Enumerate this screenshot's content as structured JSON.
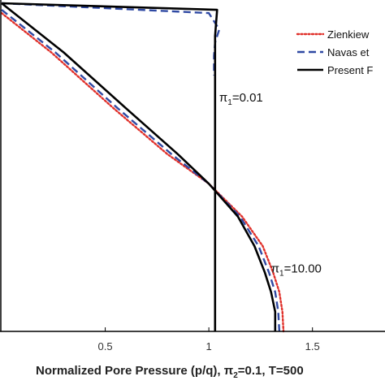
{
  "chart_data": {
    "type": "line",
    "xlabel": {
      "main": "Normalized Pore Pressure (p/q), ",
      "pi2_sym": "π",
      "pi2_sub": "2",
      "pi2_rest": "=0.1, T=500"
    },
    "xlim": [
      0.0,
      1.85
    ],
    "ylim": [
      0.0,
      1.0
    ],
    "x_ticks": [
      {
        "value": 0.5,
        "label": "0.5"
      },
      {
        "value": 1.0,
        "label": "1"
      },
      {
        "value": 1.5,
        "label": "1.5"
      }
    ],
    "legend": {
      "position": "top-right",
      "entries": [
        {
          "label": "Zienkiew",
          "color": "#e0302a",
          "dash": "dotted"
        },
        {
          "label": "Navas et",
          "color": "#2f49a3",
          "dash": "dashed"
        },
        {
          "label": "Present F",
          "color": "#000000",
          "dash": "solid"
        }
      ]
    },
    "annotations": [
      {
        "sym": "π",
        "sub": "1",
        "rest": "=0.01",
        "x": 1.05,
        "y": 0.7
      },
      {
        "sym": "π",
        "sub": "1",
        "rest": "=10.00",
        "x": 1.3,
        "y": 0.18
      }
    ],
    "series": [
      {
        "group": "pi1_0.01",
        "label": "Present F",
        "color": "#000000",
        "dash": "solid",
        "x": [
          0.0,
          1.04,
          1.03,
          1.03,
          1.03,
          1.03,
          1.03,
          1.03,
          1.03
        ],
        "y": [
          1.0,
          0.98,
          0.9,
          0.8,
          0.6,
          0.4,
          0.2,
          0.1,
          0.0
        ]
      },
      {
        "group": "pi1_0.01",
        "label": "Navas et",
        "color": "#2f49a3",
        "dash": "dashed",
        "x": [
          0.0,
          1.0,
          1.03,
          1.05,
          1.03,
          1.025,
          1.025,
          1.025,
          1.025
        ],
        "y": [
          1.0,
          0.97,
          0.94,
          0.92,
          0.88,
          0.84,
          0.82,
          0.8,
          0.78
        ]
      },
      {
        "group": "pi1_10",
        "label": "Present F",
        "color": "#000000",
        "dash": "solid",
        "x": [
          0.0,
          0.3,
          0.6,
          0.85,
          1.0,
          1.14,
          1.22,
          1.27,
          1.3,
          1.32,
          1.32
        ],
        "y": [
          1.0,
          0.85,
          0.68,
          0.54,
          0.45,
          0.35,
          0.26,
          0.18,
          0.12,
          0.06,
          0.0
        ]
      },
      {
        "group": "pi1_10",
        "label": "Navas et",
        "color": "#2f49a3",
        "dash": "dashed",
        "x": [
          0.0,
          0.26,
          0.56,
          0.82,
          1.0,
          1.15,
          1.24,
          1.29,
          1.32,
          1.335,
          1.34
        ],
        "y": [
          0.98,
          0.85,
          0.68,
          0.54,
          0.45,
          0.35,
          0.26,
          0.18,
          0.12,
          0.06,
          0.0
        ]
      },
      {
        "group": "pi1_10",
        "label": "Zienkiew",
        "color": "#e0302a",
        "dash": "dotted",
        "x": [
          0.0,
          0.24,
          0.54,
          0.8,
          1.0,
          1.16,
          1.26,
          1.31,
          1.34,
          1.355,
          1.36
        ],
        "y": [
          0.97,
          0.85,
          0.68,
          0.54,
          0.45,
          0.35,
          0.26,
          0.18,
          0.12,
          0.06,
          0.0
        ]
      }
    ]
  }
}
